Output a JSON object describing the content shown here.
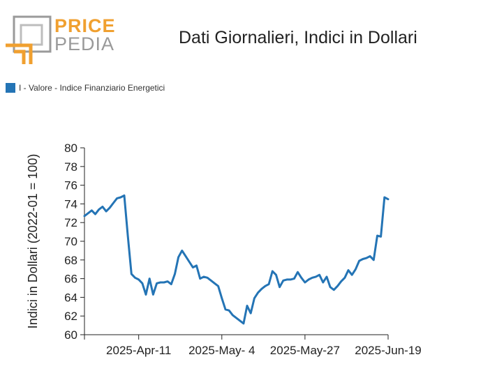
{
  "brand": {
    "line1": "PRICE",
    "line2": "PEDIA"
  },
  "colors": {
    "series": "#2474b5",
    "brand_orange": "#f0a030",
    "brand_gray": "#9a9a9a"
  },
  "chart_data": {
    "type": "line",
    "title": "Dati Giornalieri, Indici in Dollari",
    "ylabel": "Indici in Dollari (2022-01 = 100)",
    "xlabel": "",
    "ylim": [
      60,
      80
    ],
    "yticks": [
      60,
      62,
      64,
      66,
      68,
      70,
      72,
      74,
      76,
      78,
      80
    ],
    "xticks": [
      "2025-Apr-11",
      "2025-May- 4",
      "2025-May-27",
      "2025-Jun-19"
    ],
    "xtick_positions": [
      15,
      38,
      61,
      84
    ],
    "xlim": [
      0,
      84
    ],
    "legend_position": "top-left",
    "series": [
      {
        "name": "I - Valore - Indice Finanziario Energetici",
        "x": [
          0,
          1,
          2,
          3,
          4,
          5,
          6,
          7,
          8,
          9,
          10,
          11,
          12,
          13,
          14,
          15,
          16,
          17,
          18,
          19,
          20,
          21,
          22,
          23,
          24,
          25,
          26,
          27,
          28,
          29,
          30,
          31,
          32,
          33,
          34,
          35,
          36,
          37,
          38,
          39,
          40,
          41,
          42,
          43,
          44,
          45,
          46,
          47,
          48,
          49,
          50,
          51,
          52,
          53,
          54,
          55,
          56,
          57,
          58,
          59,
          60,
          61,
          62,
          63,
          64,
          65,
          66,
          67,
          68,
          69,
          70,
          71,
          72,
          73,
          74,
          75,
          76,
          77,
          78,
          79,
          80,
          81,
          82,
          83,
          84
        ],
        "y": [
          72.7,
          73.0,
          73.3,
          72.9,
          73.4,
          73.7,
          73.2,
          73.6,
          74.1,
          74.6,
          74.7,
          74.9,
          70.6,
          66.5,
          66.1,
          65.9,
          65.5,
          64.3,
          66.0,
          64.3,
          65.5,
          65.6,
          65.6,
          65.7,
          65.4,
          66.5,
          68.3,
          69.0,
          68.4,
          67.8,
          67.2,
          67.4,
          66.0,
          66.2,
          66.1,
          65.8,
          65.5,
          65.2,
          63.9,
          62.7,
          62.6,
          62.1,
          61.8,
          61.5,
          61.2,
          63.1,
          62.3,
          63.9,
          64.5,
          64.9,
          65.2,
          65.4,
          66.8,
          66.4,
          65.1,
          65.8,
          65.9,
          65.9,
          66.0,
          66.7,
          66.1,
          65.6,
          65.9,
          66.1,
          66.2,
          66.4,
          65.6,
          66.2,
          65.1,
          64.8,
          65.2,
          65.7,
          66.1,
          66.9,
          66.4,
          67.0,
          67.9,
          68.1,
          68.2,
          68.4,
          68.0,
          70.6,
          70.5,
          74.7,
          74.5
        ]
      }
    ]
  }
}
